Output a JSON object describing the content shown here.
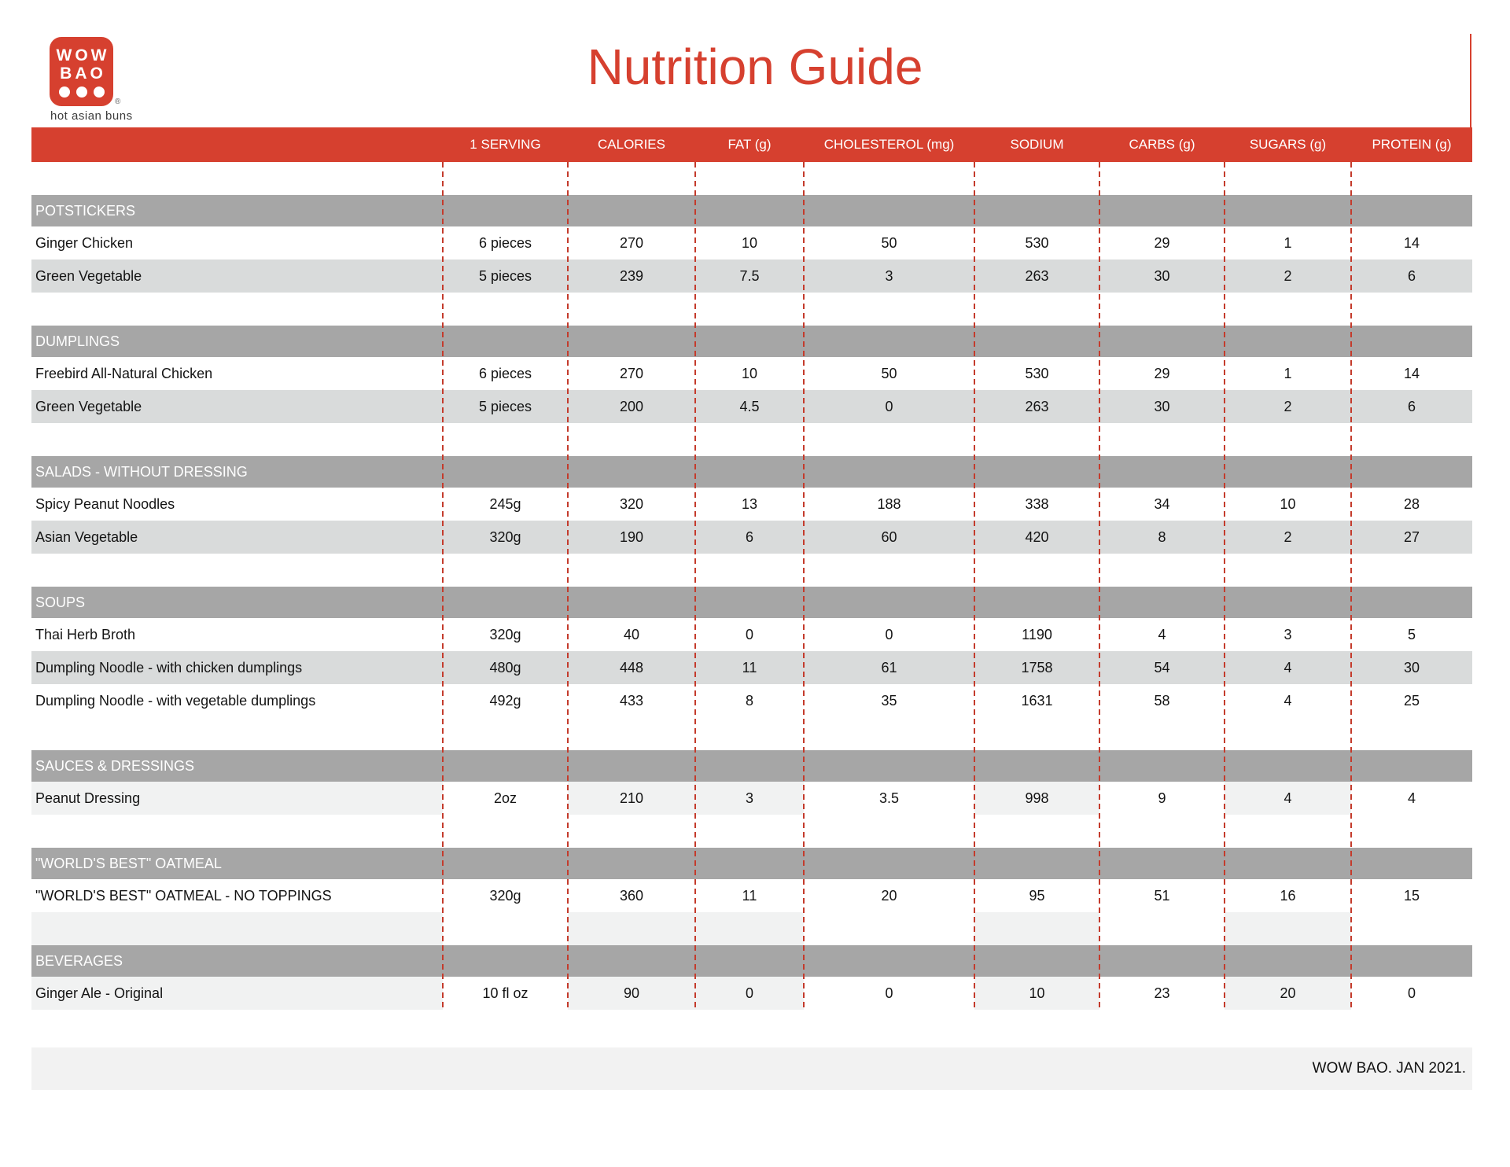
{
  "brand": {
    "logo_line1": "WOW",
    "logo_line2": "BAO",
    "logo_registered": "®",
    "logo_tagline": "hot asian buns"
  },
  "title": "Nutrition Guide",
  "colors": {
    "brand_red": "#d6402f",
    "dash_red": "#c43b2c",
    "bar_gray": "#a6a6a6",
    "zebra_gray": "#d9dbdb",
    "checker_gray": "#f1f2f2",
    "footer_gray": "#f2f2f2"
  },
  "table": {
    "columns": [
      "1 SERVING",
      "CALORIES",
      "FAT (g)",
      "CHOLESTEROL (mg)",
      "SODIUM",
      "CARBS (g)",
      "SUGARS (g)",
      "PROTEIN (g)"
    ],
    "sections": [
      {
        "name": "POTSTICKERS",
        "spacer_before": "white",
        "rows": [
          {
            "label": "Ginger Chicken",
            "values": [
              "6 pieces",
              "270",
              "10",
              "50",
              "530",
              "29",
              "1",
              "14"
            ],
            "shade": "white"
          },
          {
            "label": "Green Vegetable",
            "values": [
              "5 pieces",
              "239",
              "7.5",
              "3",
              "263",
              "30",
              "2",
              "6"
            ],
            "shade": "zebra"
          }
        ]
      },
      {
        "name": "DUMPLINGS",
        "spacer_before": "white",
        "rows": [
          {
            "label": "Freebird All-Natural Chicken",
            "values": [
              "6 pieces",
              "270",
              "10",
              "50",
              "530",
              "29",
              "1",
              "14"
            ],
            "shade": "white"
          },
          {
            "label": "Green Vegetable",
            "values": [
              "5 pieces",
              "200",
              "4.5",
              "0",
              "263",
              "30",
              "2",
              "6"
            ],
            "shade": "zebra"
          }
        ]
      },
      {
        "name": "SALADS - WITHOUT DRESSING",
        "spacer_before": "white",
        "rows": [
          {
            "label": "Spicy Peanut Noodles",
            "values": [
              "245g",
              "320",
              "13",
              "188",
              "338",
              "34",
              "10",
              "28"
            ],
            "shade": "white"
          },
          {
            "label": "Asian Vegetable",
            "values": [
              "320g",
              "190",
              "6",
              "60",
              "420",
              "8",
              "2",
              "27"
            ],
            "shade": "zebra"
          }
        ]
      },
      {
        "name": "SOUPS",
        "spacer_before": "white",
        "rows": [
          {
            "label": "Thai Herb Broth",
            "values": [
              "320g",
              "40",
              "0",
              "0",
              "1190",
              "4",
              "3",
              "5"
            ],
            "shade": "white"
          },
          {
            "label": "Dumpling Noodle - with chicken dumplings",
            "values": [
              "480g",
              "448",
              "11",
              "61",
              "1758",
              "54",
              "4",
              "30"
            ],
            "shade": "zebra"
          },
          {
            "label": "Dumpling Noodle - with vegetable dumplings",
            "values": [
              "492g",
              "433",
              "8",
              "35",
              "1631",
              "58",
              "4",
              "25"
            ],
            "shade": "white"
          }
        ]
      },
      {
        "name": "SAUCES & DRESSINGS",
        "spacer_before": "white",
        "rows": [
          {
            "label": "Peanut Dressing",
            "values": [
              "2oz",
              "210",
              "3",
              "3.5",
              "998",
              "9",
              "4",
              "4"
            ],
            "shade": "checker"
          }
        ]
      },
      {
        "name": "\"WORLD'S BEST\" OATMEAL",
        "spacer_before": "white",
        "rows": [
          {
            "label": "\"WORLD'S BEST\" OATMEAL - NO TOPPINGS",
            "values": [
              "320g",
              "360",
              "11",
              "20",
              "95",
              "51",
              "16",
              "15"
            ],
            "shade": "white"
          }
        ]
      },
      {
        "name": "BEVERAGES",
        "spacer_before": "checker",
        "rows": [
          {
            "label": "Ginger Ale - Original",
            "values": [
              "10 fl oz",
              "90",
              "0",
              "0",
              "10",
              "23",
              "20",
              "0"
            ],
            "shade": "checker"
          }
        ]
      }
    ]
  },
  "footer": {
    "text": "WOW BAO. JAN 2021."
  }
}
